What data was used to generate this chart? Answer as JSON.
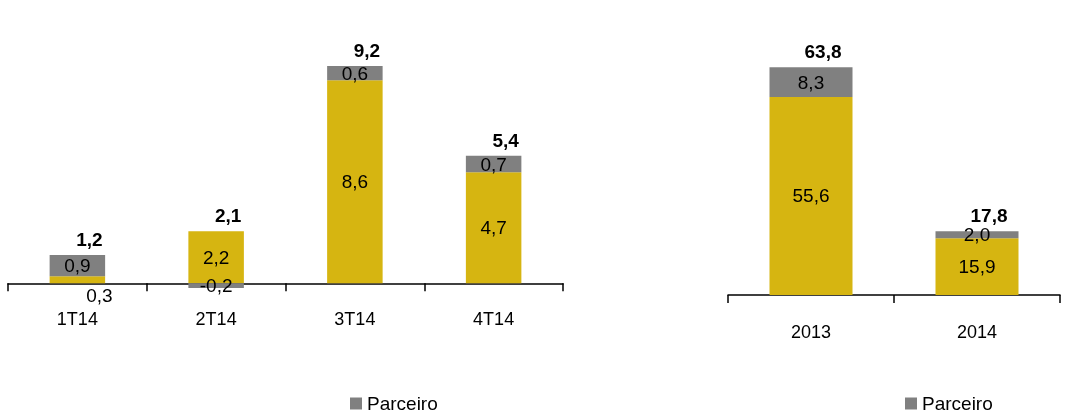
{
  "chart_data": [
    {
      "type": "bar",
      "stacked": true,
      "categories": [
        "1T14",
        "2T14",
        "3T14",
        "4T14"
      ],
      "legend": "bottom",
      "series": [
        {
          "color": "#d6b511",
          "values": [
            0.3,
            2.2,
            8.6,
            4.7
          ],
          "value_labels": [
            "0,3",
            "2,2",
            "8,6",
            "4,7"
          ]
        },
        {
          "name": "Parceiro",
          "color": "#808080",
          "values": [
            0.9,
            -0.2,
            0.6,
            0.7
          ],
          "value_labels": [
            "0,9",
            "-0,2",
            "0,6",
            "0,7"
          ]
        }
      ],
      "totals": [
        "1,2",
        "2,1",
        "9,2",
        "5,4"
      ]
    },
    {
      "type": "bar",
      "stacked": true,
      "categories": [
        "2013",
        "2014"
      ],
      "legend": "bottom",
      "series": [
        {
          "color": "#d6b511",
          "values": [
            55.6,
            15.9
          ],
          "value_labels": [
            "55,6",
            "15,9"
          ]
        },
        {
          "name": "Parceiro",
          "color": "#808080",
          "values": [
            8.3,
            2.0
          ],
          "value_labels": [
            "8,3",
            "2,0"
          ]
        }
      ],
      "totals": [
        "63,8",
        "17,8"
      ]
    }
  ]
}
